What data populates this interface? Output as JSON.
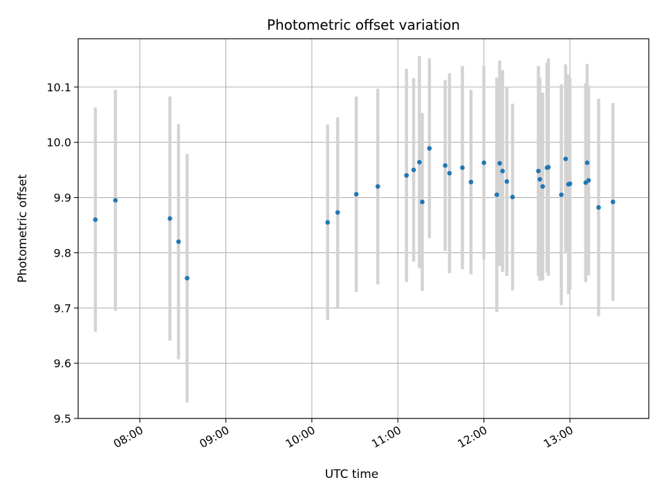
{
  "chart_data": {
    "type": "scatter",
    "title": "Photometric offset variation",
    "xlabel": "UTC time",
    "ylabel": "Photometric offset",
    "xlim": [
      "07:17",
      "13:55"
    ],
    "ylim": [
      9.5,
      10.1875
    ],
    "x_ticks": [
      "08:00",
      "09:00",
      "10:00",
      "11:00",
      "12:00",
      "13:00"
    ],
    "y_ticks": [
      9.5,
      9.6,
      9.7,
      9.8,
      9.9,
      10.0,
      10.1
    ],
    "y_tick_labels": [
      "9.5",
      "9.6",
      "9.7",
      "9.8",
      "9.9",
      "10.0",
      "10.1"
    ],
    "grid": true,
    "marker_color": "#1f77b4",
    "errorbar_color": "#d3d3d3",
    "points": [
      {
        "x": "07:29",
        "y": 9.86,
        "err": 0.203
      },
      {
        "x": "07:43",
        "y": 9.895,
        "err": 0.2
      },
      {
        "x": "08:21",
        "y": 9.862,
        "err": 0.221
      },
      {
        "x": "08:27",
        "y": 9.82,
        "err": 0.213
      },
      {
        "x": "08:33",
        "y": 9.754,
        "err": 0.225
      },
      {
        "x": "10:11",
        "y": 9.855,
        "err": 0.177
      },
      {
        "x": "10:18",
        "y": 9.873,
        "err": 0.172
      },
      {
        "x": "10:31",
        "y": 9.906,
        "err": 0.177
      },
      {
        "x": "10:46",
        "y": 9.92,
        "err": 0.177
      },
      {
        "x": "11:06",
        "y": 9.94,
        "err": 0.193
      },
      {
        "x": "11:11",
        "y": 9.95,
        "err": 0.166
      },
      {
        "x": "11:15",
        "y": 9.964,
        "err": 0.192
      },
      {
        "x": "11:17",
        "y": 9.892,
        "err": 0.161
      },
      {
        "x": "11:22",
        "y": 9.989,
        "err": 0.163
      },
      {
        "x": "11:33",
        "y": 9.958,
        "err": 0.155
      },
      {
        "x": "11:36",
        "y": 9.944,
        "err": 0.181
      },
      {
        "x": "11:45",
        "y": 9.954,
        "err": 0.184
      },
      {
        "x": "11:51",
        "y": 9.928,
        "err": 0.167
      },
      {
        "x": "12:00",
        "y": 9.963,
        "err": 0.175
      },
      {
        "x": "12:09",
        "y": 9.905,
        "err": 0.212
      },
      {
        "x": "12:11",
        "y": 9.962,
        "err": 0.186
      },
      {
        "x": "12:13",
        "y": 9.948,
        "err": 0.183
      },
      {
        "x": "12:16",
        "y": 9.929,
        "err": 0.171
      },
      {
        "x": "12:20",
        "y": 9.901,
        "err": 0.169
      },
      {
        "x": "12:38",
        "y": 9.948,
        "err": 0.19
      },
      {
        "x": "12:39",
        "y": 9.933,
        "err": 0.184
      },
      {
        "x": "12:41",
        "y": 9.92,
        "err": 0.17
      },
      {
        "x": "12:44",
        "y": 9.954,
        "err": 0.19
      },
      {
        "x": "12:45",
        "y": 9.955,
        "err": 0.197
      },
      {
        "x": "12:54",
        "y": 9.905,
        "err": 0.2
      },
      {
        "x": "12:57",
        "y": 9.97,
        "err": 0.171
      },
      {
        "x": "12:59",
        "y": 9.924,
        "err": 0.199
      },
      {
        "x": "13:00",
        "y": 9.925,
        "err": 0.192
      },
      {
        "x": "13:11",
        "y": 9.927,
        "err": 0.18
      },
      {
        "x": "13:12",
        "y": 9.963,
        "err": 0.179
      },
      {
        "x": "13:13",
        "y": 9.931,
        "err": 0.172
      },
      {
        "x": "13:20",
        "y": 9.882,
        "err": 0.197
      },
      {
        "x": "13:30",
        "y": 9.892,
        "err": 0.179
      }
    ]
  }
}
